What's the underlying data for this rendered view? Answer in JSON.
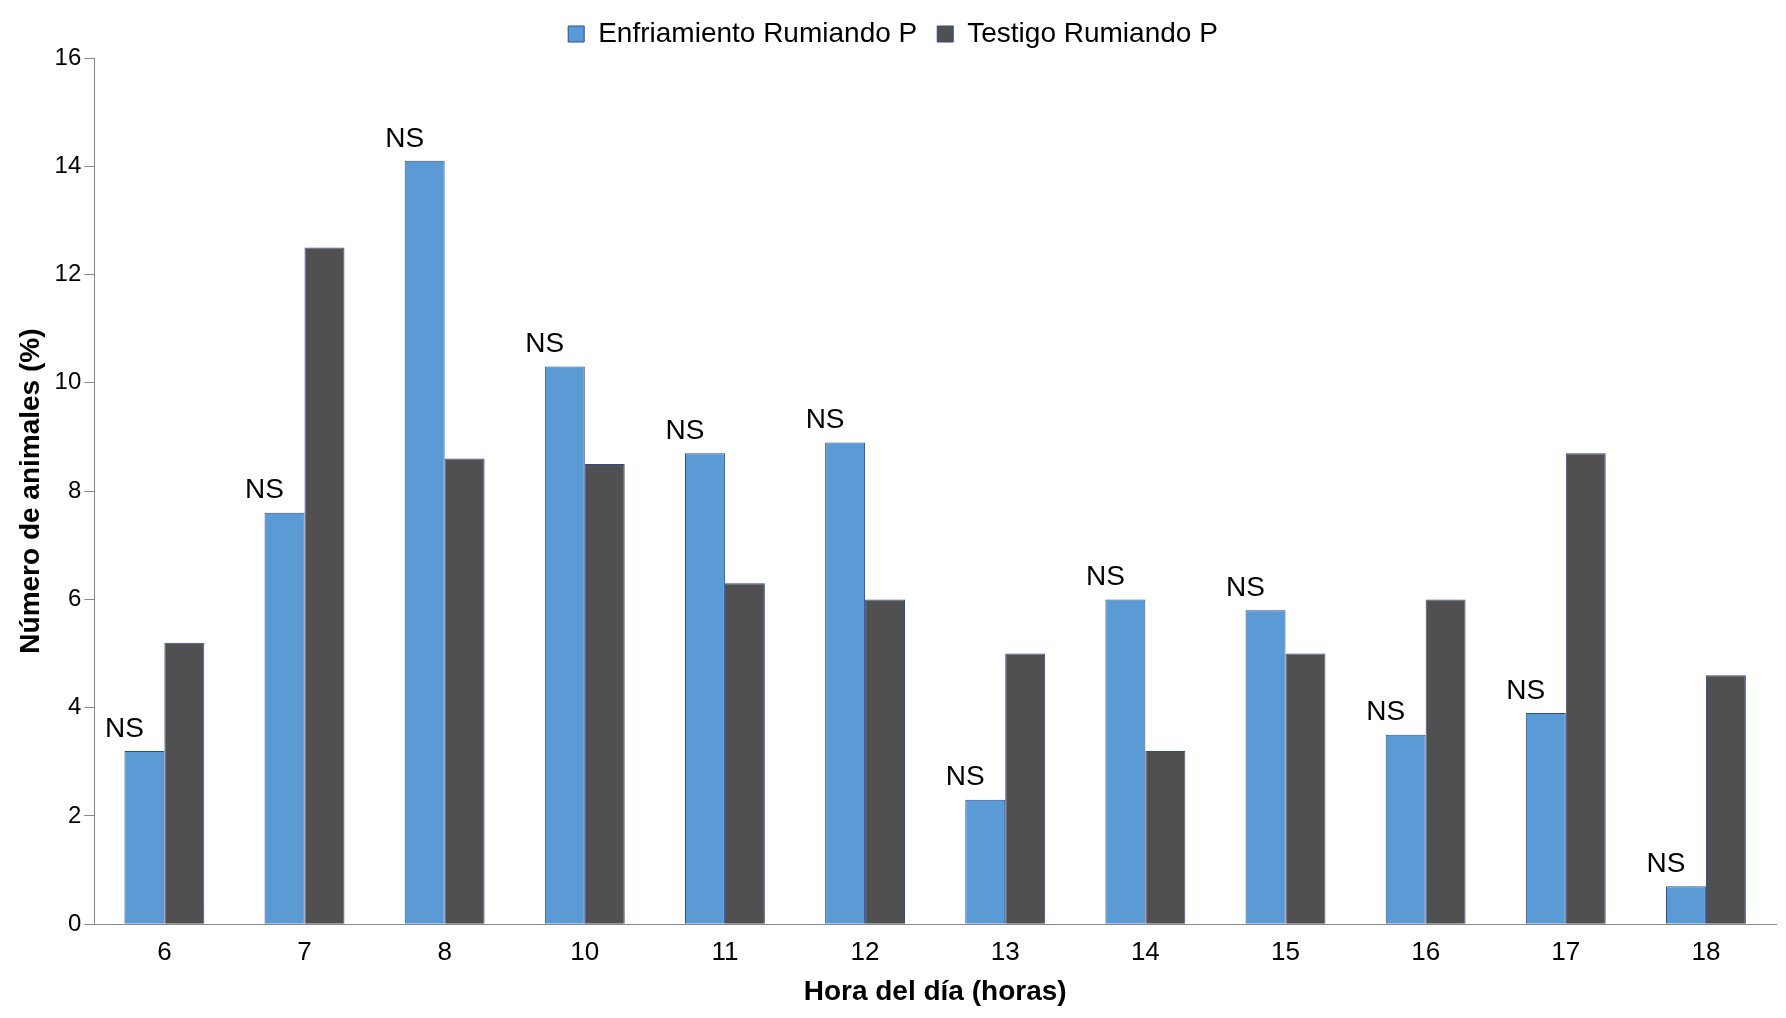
{
  "chart_data": {
    "type": "bar",
    "xlabel": "Hora del día (horas)",
    "ylabel": "Número de animales (%)",
    "categories": [
      "6",
      "7",
      "8",
      "10",
      "11",
      "12",
      "13",
      "14",
      "15",
      "16",
      "17",
      "18"
    ],
    "series": [
      {
        "name": "Enfriamiento Rumiando P",
        "color": "#5b9bd5",
        "values": [
          3.2,
          7.6,
          14.1,
          10.3,
          8.7,
          8.9,
          2.3,
          6.0,
          5.8,
          3.5,
          3.9,
          0.7
        ]
      },
      {
        "name": "Testigo Rumiando P",
        "color": "#505050",
        "values": [
          5.2,
          12.5,
          8.6,
          8.5,
          6.3,
          6.0,
          5.0,
          3.2,
          5.0,
          6.0,
          8.7,
          4.6
        ]
      }
    ],
    "ylim": [
      0,
      16
    ],
    "yticks": [
      0,
      2,
      4,
      6,
      8,
      10,
      12,
      14,
      16
    ],
    "grid": false,
    "legend": "top",
    "annotations": [
      {
        "text": "NS",
        "x": "6",
        "y": 3.2
      },
      {
        "text": "NS",
        "x": "7",
        "y": 7.6
      },
      {
        "text": "NS",
        "x": "8",
        "y": 14.1
      },
      {
        "text": "NS",
        "x": "10",
        "y": 10.3
      },
      {
        "text": "NS",
        "x": "11",
        "y": 8.7
      },
      {
        "text": "NS",
        "x": "12",
        "y": 8.9
      },
      {
        "text": "NS",
        "x": "13",
        "y": 2.3
      },
      {
        "text": "NS",
        "x": "14",
        "y": 6.0
      },
      {
        "text": "NS",
        "x": "15",
        "y": 5.8
      },
      {
        "text": "NS",
        "x": "16",
        "y": 3.5
      },
      {
        "text": "NS",
        "x": "17",
        "y": 3.9
      },
      {
        "text": "NS",
        "x": "18",
        "y": 0.7
      }
    ]
  }
}
